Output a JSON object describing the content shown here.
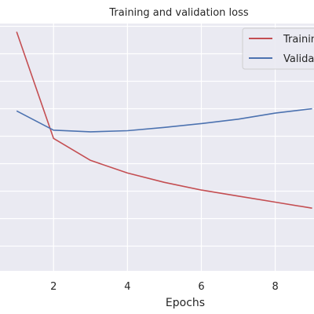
{
  "chart_data": {
    "type": "line",
    "title": "Training and validation loss",
    "xlabel": "Epochs",
    "ylabel": "",
    "x": [
      1,
      2,
      3,
      4,
      5,
      6,
      7,
      8,
      9
    ],
    "xticks": [
      2,
      4,
      6,
      8
    ],
    "xlim": [
      0.55,
      9.05
    ],
    "ylim": [
      0.255,
      0.705
    ],
    "grid": true,
    "legend_position": "top-right",
    "series": [
      {
        "name": "Training loss",
        "color": "#c44e52",
        "values": [
          0.69,
          0.496,
          0.456,
          0.433,
          0.416,
          0.402,
          0.391,
          0.38,
          0.369
        ]
      },
      {
        "name": "Validation loss",
        "color": "#4c72b0",
        "values": [
          0.546,
          0.511,
          0.508,
          0.51,
          0.516,
          0.523,
          0.531,
          0.542,
          0.55
        ]
      }
    ]
  }
}
